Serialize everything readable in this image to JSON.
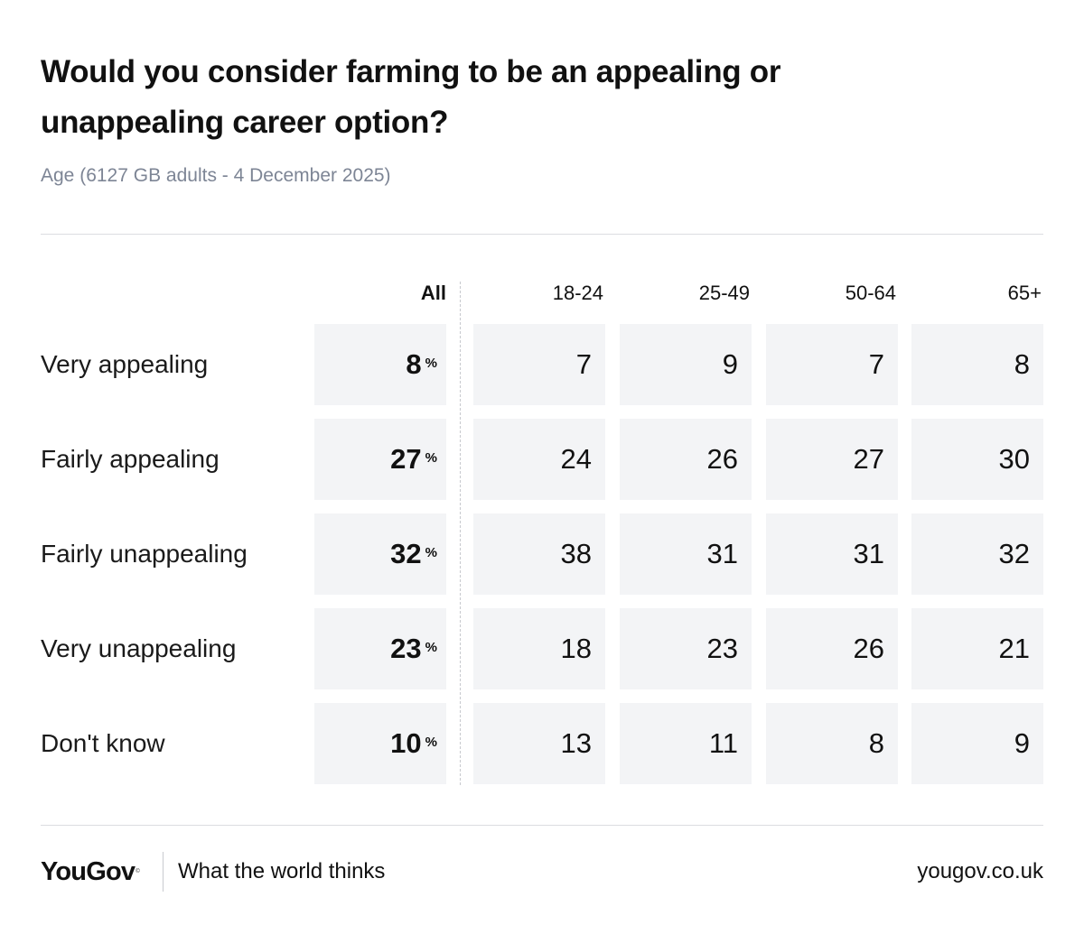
{
  "title": "Would you consider farming to be an appealing or unappealing career option?",
  "subtitle": "Age (6127 GB adults - 4 December 2025)",
  "chart_data": {
    "type": "table",
    "title": "Would you consider farming to be an appealing or unappealing career option?",
    "subtitle": "Age (6127 GB adults - 4 December 2025)",
    "columns": [
      "All",
      "18-24",
      "25-49",
      "50-64",
      "65+"
    ],
    "percent_symbol": "%",
    "rows": [
      {
        "label": "Very appealing",
        "values": [
          8,
          7,
          9,
          7,
          8
        ]
      },
      {
        "label": "Fairly appealing",
        "values": [
          27,
          24,
          26,
          27,
          30
        ]
      },
      {
        "label": "Fairly unappealing",
        "values": [
          32,
          38,
          31,
          31,
          32
        ]
      },
      {
        "label": "Very unappealing",
        "values": [
          23,
          18,
          23,
          26,
          21
        ]
      },
      {
        "label": "Don't know",
        "values": [
          10,
          13,
          11,
          8,
          9
        ]
      }
    ]
  },
  "footer": {
    "brand": "YouGov",
    "brand_mark": "©",
    "tagline": "What the world thinks",
    "url": "yougov.co.uk"
  }
}
